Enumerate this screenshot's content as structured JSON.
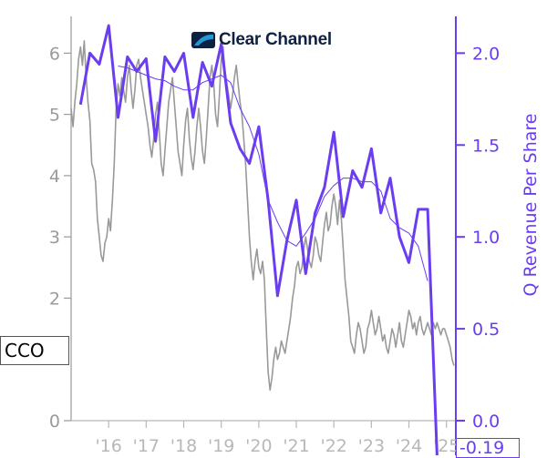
{
  "logo": {
    "name": "Clear Channel",
    "colors": {
      "text": "#0f2140",
      "mark": "#1f9ad6"
    }
  },
  "ticker": "CCO",
  "colors": {
    "price": "#999999",
    "revenue": "#6a3df0",
    "axis": "#9a9a9a"
  },
  "chart_data": {
    "type": "line",
    "x_tick_labels": [
      "'16",
      "'17",
      "'18",
      "'19",
      "'20",
      "'21",
      "'22",
      "'23",
      "'24",
      "'25"
    ],
    "x_tick_years": [
      2016,
      2017,
      2018,
      2019,
      2020,
      2021,
      2022,
      2023,
      2024,
      2025
    ],
    "xlim": [
      2015.0,
      2025.25
    ],
    "left_axis": {
      "ticks": [
        0,
        2,
        3,
        4,
        5,
        6
      ],
      "ylim": [
        0,
        6.6
      ]
    },
    "right_axis": {
      "label": "Q Revenue Per Share",
      "ticks": [
        "0.0",
        "0.5",
        "1.0",
        "1.5",
        "2.0"
      ],
      "ylim": [
        0,
        2.2
      ],
      "last_value_label": "-0.19"
    },
    "series": [
      {
        "axis": "left",
        "points": [
          [
            2015.0,
            5.1
          ],
          [
            2015.05,
            4.8
          ],
          [
            2015.1,
            5.2
          ],
          [
            2015.15,
            5.5
          ],
          [
            2015.2,
            5.9
          ],
          [
            2015.25,
            6.1
          ],
          [
            2015.3,
            5.8
          ],
          [
            2015.35,
            6.2
          ],
          [
            2015.4,
            5.6
          ],
          [
            2015.45,
            5.2
          ],
          [
            2015.5,
            4.9
          ],
          [
            2015.55,
            4.2
          ],
          [
            2015.6,
            4.1
          ],
          [
            2015.65,
            3.9
          ],
          [
            2015.7,
            3.3
          ],
          [
            2015.75,
            3.0
          ],
          [
            2015.8,
            2.7
          ],
          [
            2015.85,
            2.6
          ],
          [
            2015.9,
            2.9
          ],
          [
            2015.95,
            3.0
          ],
          [
            2016.0,
            3.3
          ],
          [
            2016.05,
            3.1
          ],
          [
            2016.1,
            3.6
          ],
          [
            2016.15,
            4.2
          ],
          [
            2016.2,
            5.1
          ],
          [
            2016.25,
            5.5
          ],
          [
            2016.3,
            5.3
          ],
          [
            2016.35,
            5.6
          ],
          [
            2016.4,
            5.4
          ],
          [
            2016.45,
            5.2
          ],
          [
            2016.5,
            5.6
          ],
          [
            2016.55,
            5.8
          ],
          [
            2016.6,
            5.4
          ],
          [
            2016.65,
            5.1
          ],
          [
            2016.7,
            5.4
          ],
          [
            2016.75,
            5.8
          ],
          [
            2016.8,
            5.9
          ],
          [
            2016.85,
            5.6
          ],
          [
            2016.9,
            5.4
          ],
          [
            2016.95,
            5.2
          ],
          [
            2017.0,
            5.0
          ],
          [
            2017.05,
            4.8
          ],
          [
            2017.1,
            4.5
          ],
          [
            2017.15,
            4.3
          ],
          [
            2017.2,
            4.6
          ],
          [
            2017.25,
            5.0
          ],
          [
            2017.3,
            5.2
          ],
          [
            2017.35,
            4.7
          ],
          [
            2017.4,
            4.2
          ],
          [
            2017.45,
            4.0
          ],
          [
            2017.5,
            4.4
          ],
          [
            2017.55,
            4.8
          ],
          [
            2017.6,
            5.2
          ],
          [
            2017.65,
            5.4
          ],
          [
            2017.7,
            5.6
          ],
          [
            2017.75,
            5.2
          ],
          [
            2017.8,
            4.8
          ],
          [
            2017.85,
            4.4
          ],
          [
            2017.9,
            4.2
          ],
          [
            2017.95,
            4.0
          ],
          [
            2018.0,
            4.5
          ],
          [
            2018.05,
            4.9
          ],
          [
            2018.1,
            5.1
          ],
          [
            2018.15,
            4.6
          ],
          [
            2018.2,
            4.3
          ],
          [
            2018.25,
            4.1
          ],
          [
            2018.3,
            4.4
          ],
          [
            2018.35,
            4.8
          ],
          [
            2018.4,
            5.1
          ],
          [
            2018.45,
            4.8
          ],
          [
            2018.5,
            4.4
          ],
          [
            2018.55,
            4.2
          ],
          [
            2018.6,
            4.6
          ],
          [
            2018.65,
            5.1
          ],
          [
            2018.7,
            5.6
          ],
          [
            2018.75,
            5.8
          ],
          [
            2018.8,
            5.5
          ],
          [
            2018.85,
            5.0
          ],
          [
            2018.9,
            4.8
          ],
          [
            2018.95,
            5.3
          ],
          [
            2019.0,
            5.9
          ],
          [
            2019.05,
            6.1
          ],
          [
            2019.1,
            5.7
          ],
          [
            2019.15,
            5.5
          ],
          [
            2019.2,
            5.3
          ],
          [
            2019.25,
            5.1
          ],
          [
            2019.3,
            5.3
          ],
          [
            2019.35,
            5.6
          ],
          [
            2019.4,
            5.8
          ],
          [
            2019.45,
            5.5
          ],
          [
            2019.5,
            5.2
          ],
          [
            2019.55,
            5.0
          ],
          [
            2019.6,
            4.6
          ],
          [
            2019.65,
            4.2
          ],
          [
            2019.7,
            3.6
          ],
          [
            2019.75,
            3.0
          ],
          [
            2019.8,
            2.6
          ],
          [
            2019.85,
            2.3
          ],
          [
            2019.9,
            2.6
          ],
          [
            2019.95,
            2.8
          ],
          [
            2020.0,
            2.5
          ],
          [
            2020.05,
            2.4
          ],
          [
            2020.1,
            2.6
          ],
          [
            2020.15,
            2.3
          ],
          [
            2020.2,
            1.5
          ],
          [
            2020.25,
            0.8
          ],
          [
            2020.3,
            0.5
          ],
          [
            2020.35,
            0.7
          ],
          [
            2020.4,
            1.0
          ],
          [
            2020.45,
            1.2
          ],
          [
            2020.5,
            1.0
          ],
          [
            2020.55,
            1.1
          ],
          [
            2020.6,
            1.3
          ],
          [
            2020.65,
            1.2
          ],
          [
            2020.7,
            1.1
          ],
          [
            2020.75,
            1.3
          ],
          [
            2020.8,
            1.5
          ],
          [
            2020.85,
            1.7
          ],
          [
            2020.9,
            2.0
          ],
          [
            2020.95,
            2.2
          ],
          [
            2021.0,
            2.5
          ],
          [
            2021.05,
            2.6
          ],
          [
            2021.1,
            2.4
          ],
          [
            2021.15,
            2.5
          ],
          [
            2021.2,
            2.8
          ],
          [
            2021.25,
            3.0
          ],
          [
            2021.3,
            2.8
          ],
          [
            2021.35,
            2.6
          ],
          [
            2021.4,
            2.5
          ],
          [
            2021.45,
            2.7
          ],
          [
            2021.5,
            3.0
          ],
          [
            2021.55,
            2.9
          ],
          [
            2021.6,
            2.7
          ],
          [
            2021.65,
            2.6
          ],
          [
            2021.7,
            2.9
          ],
          [
            2021.75,
            3.2
          ],
          [
            2021.8,
            3.4
          ],
          [
            2021.85,
            3.1
          ],
          [
            2021.9,
            3.2
          ],
          [
            2021.95,
            3.5
          ],
          [
            2022.0,
            3.7
          ],
          [
            2022.05,
            3.5
          ],
          [
            2022.1,
            3.2
          ],
          [
            2022.15,
            3.6
          ],
          [
            2022.2,
            3.3
          ],
          [
            2022.25,
            2.8
          ],
          [
            2022.3,
            2.3
          ],
          [
            2022.35,
            2.0
          ],
          [
            2022.4,
            1.7
          ],
          [
            2022.45,
            1.3
          ],
          [
            2022.5,
            1.2
          ],
          [
            2022.55,
            1.1
          ],
          [
            2022.6,
            1.4
          ],
          [
            2022.65,
            1.6
          ],
          [
            2022.7,
            1.5
          ],
          [
            2022.75,
            1.3
          ],
          [
            2022.8,
            1.1
          ],
          [
            2022.85,
            1.2
          ],
          [
            2022.9,
            1.5
          ],
          [
            2022.95,
            1.6
          ],
          [
            2023.0,
            1.8
          ],
          [
            2023.05,
            1.6
          ],
          [
            2023.1,
            1.4
          ],
          [
            2023.15,
            1.5
          ],
          [
            2023.2,
            1.7
          ],
          [
            2023.25,
            1.5
          ],
          [
            2023.3,
            1.3
          ],
          [
            2023.35,
            1.4
          ],
          [
            2023.4,
            1.2
          ],
          [
            2023.45,
            1.1
          ],
          [
            2023.5,
            1.3
          ],
          [
            2023.55,
            1.5
          ],
          [
            2023.6,
            1.4
          ],
          [
            2023.65,
            1.2
          ],
          [
            2023.7,
            1.4
          ],
          [
            2023.75,
            1.6
          ],
          [
            2023.8,
            1.3
          ],
          [
            2023.85,
            1.2
          ],
          [
            2023.9,
            1.4
          ],
          [
            2023.95,
            1.6
          ],
          [
            2024.0,
            1.8
          ],
          [
            2024.05,
            1.7
          ],
          [
            2024.1,
            1.5
          ],
          [
            2024.15,
            1.6
          ],
          [
            2024.2,
            1.4
          ],
          [
            2024.25,
            1.6
          ],
          [
            2024.3,
            1.7
          ],
          [
            2024.35,
            1.5
          ],
          [
            2024.4,
            1.4
          ],
          [
            2024.45,
            1.5
          ],
          [
            2024.5,
            1.6
          ],
          [
            2024.55,
            1.5
          ],
          [
            2024.6,
            1.4
          ],
          [
            2024.65,
            1.6
          ],
          [
            2024.7,
            1.5
          ],
          [
            2024.75,
            1.6
          ],
          [
            2024.8,
            1.5
          ],
          [
            2024.85,
            1.4
          ],
          [
            2024.9,
            1.5
          ],
          [
            2024.95,
            1.5
          ],
          [
            2025.0,
            1.4
          ],
          [
            2025.05,
            1.3
          ],
          [
            2025.1,
            1.2
          ],
          [
            2025.15,
            1.0
          ],
          [
            2025.2,
            0.9
          ]
        ]
      },
      {
        "axis": "right",
        "points": [
          [
            2015.25,
            1.72
          ],
          [
            2015.5,
            2.0
          ],
          [
            2015.75,
            1.94
          ],
          [
            2016.0,
            2.15
          ],
          [
            2016.25,
            1.65
          ],
          [
            2016.5,
            1.98
          ],
          [
            2016.75,
            1.9
          ],
          [
            2017.0,
            1.97
          ],
          [
            2017.25,
            1.52
          ],
          [
            2017.5,
            1.98
          ],
          [
            2017.75,
            1.9
          ],
          [
            2018.0,
            2.0
          ],
          [
            2018.25,
            1.65
          ],
          [
            2018.5,
            1.95
          ],
          [
            2018.75,
            1.82
          ],
          [
            2019.0,
            2.05
          ],
          [
            2019.25,
            1.62
          ],
          [
            2019.5,
            1.48
          ],
          [
            2019.75,
            1.4
          ],
          [
            2020.0,
            1.6
          ],
          [
            2020.25,
            1.2
          ],
          [
            2020.5,
            0.68
          ],
          [
            2020.75,
            0.98
          ],
          [
            2021.0,
            1.2
          ],
          [
            2021.25,
            0.8
          ],
          [
            2021.5,
            1.13
          ],
          [
            2021.75,
            1.27
          ],
          [
            2022.0,
            1.57
          ],
          [
            2022.25,
            1.11
          ],
          [
            2022.5,
            1.36
          ],
          [
            2022.75,
            1.27
          ],
          [
            2023.0,
            1.48
          ],
          [
            2023.25,
            1.13
          ],
          [
            2023.5,
            1.32
          ],
          [
            2023.75,
            1.0
          ],
          [
            2024.0,
            0.86
          ],
          [
            2024.25,
            1.15
          ],
          [
            2024.5,
            1.15
          ],
          [
            2024.75,
            -0.19
          ]
        ]
      },
      {
        "axis": "right",
        "points": [
          [
            2016.25,
            1.93
          ],
          [
            2016.5,
            1.92
          ],
          [
            2016.75,
            1.9
          ],
          [
            2017.0,
            1.88
          ],
          [
            2017.25,
            1.86
          ],
          [
            2017.5,
            1.85
          ],
          [
            2017.75,
            1.82
          ],
          [
            2018.0,
            1.8
          ],
          [
            2018.25,
            1.8
          ],
          [
            2018.5,
            1.84
          ],
          [
            2018.75,
            1.86
          ],
          [
            2019.0,
            1.88
          ],
          [
            2019.25,
            1.84
          ],
          [
            2019.5,
            1.7
          ],
          [
            2019.75,
            1.6
          ],
          [
            2020.0,
            1.45
          ],
          [
            2020.25,
            1.2
          ],
          [
            2020.5,
            1.08
          ],
          [
            2020.75,
            0.98
          ],
          [
            2021.0,
            0.95
          ],
          [
            2021.25,
            1.02
          ],
          [
            2021.5,
            1.1
          ],
          [
            2021.75,
            1.22
          ],
          [
            2022.0,
            1.28
          ],
          [
            2022.25,
            1.32
          ],
          [
            2022.5,
            1.32
          ],
          [
            2022.75,
            1.3
          ],
          [
            2023.0,
            1.3
          ],
          [
            2023.25,
            1.25
          ],
          [
            2023.5,
            1.1
          ],
          [
            2023.75,
            1.05
          ],
          [
            2024.0,
            1.02
          ],
          [
            2024.25,
            0.95
          ],
          [
            2024.5,
            0.76
          ]
        ]
      }
    ]
  }
}
